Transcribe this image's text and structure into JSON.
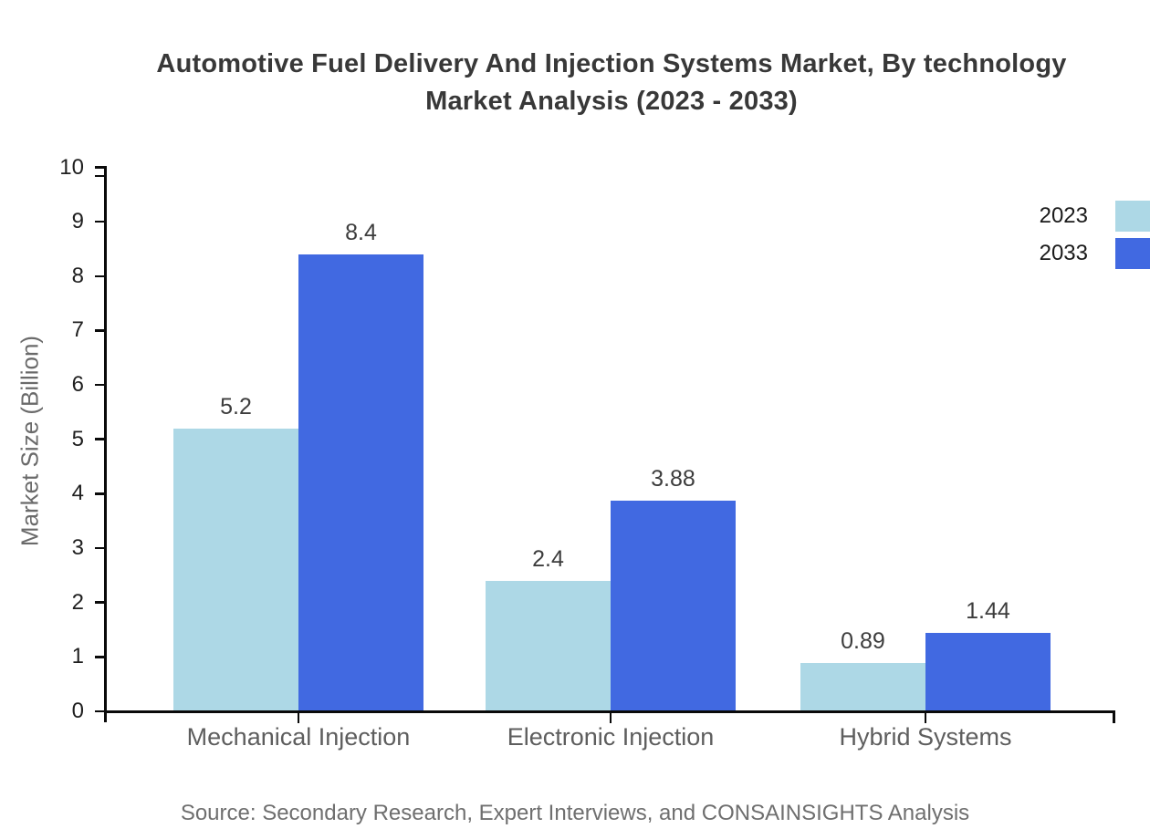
{
  "title": {
    "line1": "Automotive Fuel Delivery And Injection Systems Market, By technology",
    "line2": "Market Analysis (2023 - 2033)"
  },
  "y_axis": {
    "label": "Market Size (Billion)",
    "min": 0,
    "max": 10,
    "tick_step": 1
  },
  "legend": [
    {
      "label": "2023",
      "color": "#ADD8E6"
    },
    {
      "label": "2033",
      "color": "#4169E1"
    }
  ],
  "source": "Source: Secondary Research, Expert Interviews, and CONSAINSIGHTS Analysis",
  "colors": {
    "series_2023": "#ADD8E6",
    "series_2033": "#4169E1",
    "axis": "#0a0a0a",
    "title_text": "#383838",
    "category_text": "#5e5e5e",
    "source_text": "#6f6f6f"
  },
  "chart_data": {
    "type": "bar",
    "title": "Automotive Fuel Delivery And Injection Systems Market, By technology Market Analysis (2023 - 2033)",
    "categories": [
      "Mechanical Injection",
      "Electronic Injection",
      "Hybrid Systems"
    ],
    "series": [
      {
        "name": "2023",
        "color": "#ADD8E6",
        "values": [
          5.2,
          2.4,
          0.89
        ]
      },
      {
        "name": "2033",
        "color": "#4169E1",
        "values": [
          8.4,
          3.88,
          1.44
        ]
      }
    ],
    "xlabel": "",
    "ylabel": "Market Size (Billion)",
    "ylim": [
      0,
      10
    ],
    "grid": false,
    "legend_position": "top-right",
    "bar_value_labels": true
  }
}
